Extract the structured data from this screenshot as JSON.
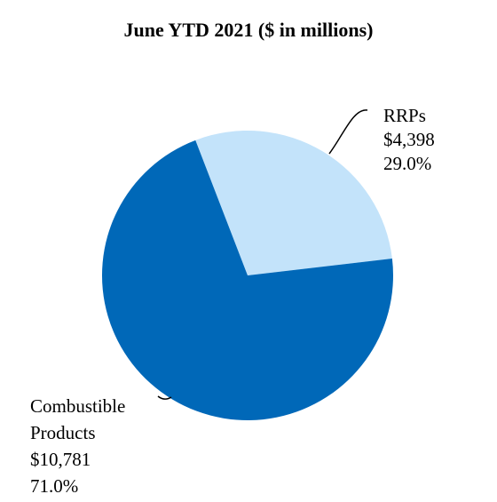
{
  "chart_data": {
    "type": "pie",
    "title": "June YTD 2021 ($ in millions)",
    "slices": [
      {
        "label_lines": [
          "RRPs"
        ],
        "amount": "$4,398",
        "percent_label": "29.0%",
        "value": 4398,
        "percent": 29.0,
        "color": "#c3e3fa"
      },
      {
        "label_lines": [
          "Combustible",
          "Products"
        ],
        "amount": "$10,781",
        "percent_label": "71.0%",
        "value": 10781,
        "percent": 71.0,
        "color": "#0068b8"
      }
    ],
    "start_angle_deg": 0,
    "direction": "clockwise",
    "legend": "none"
  }
}
